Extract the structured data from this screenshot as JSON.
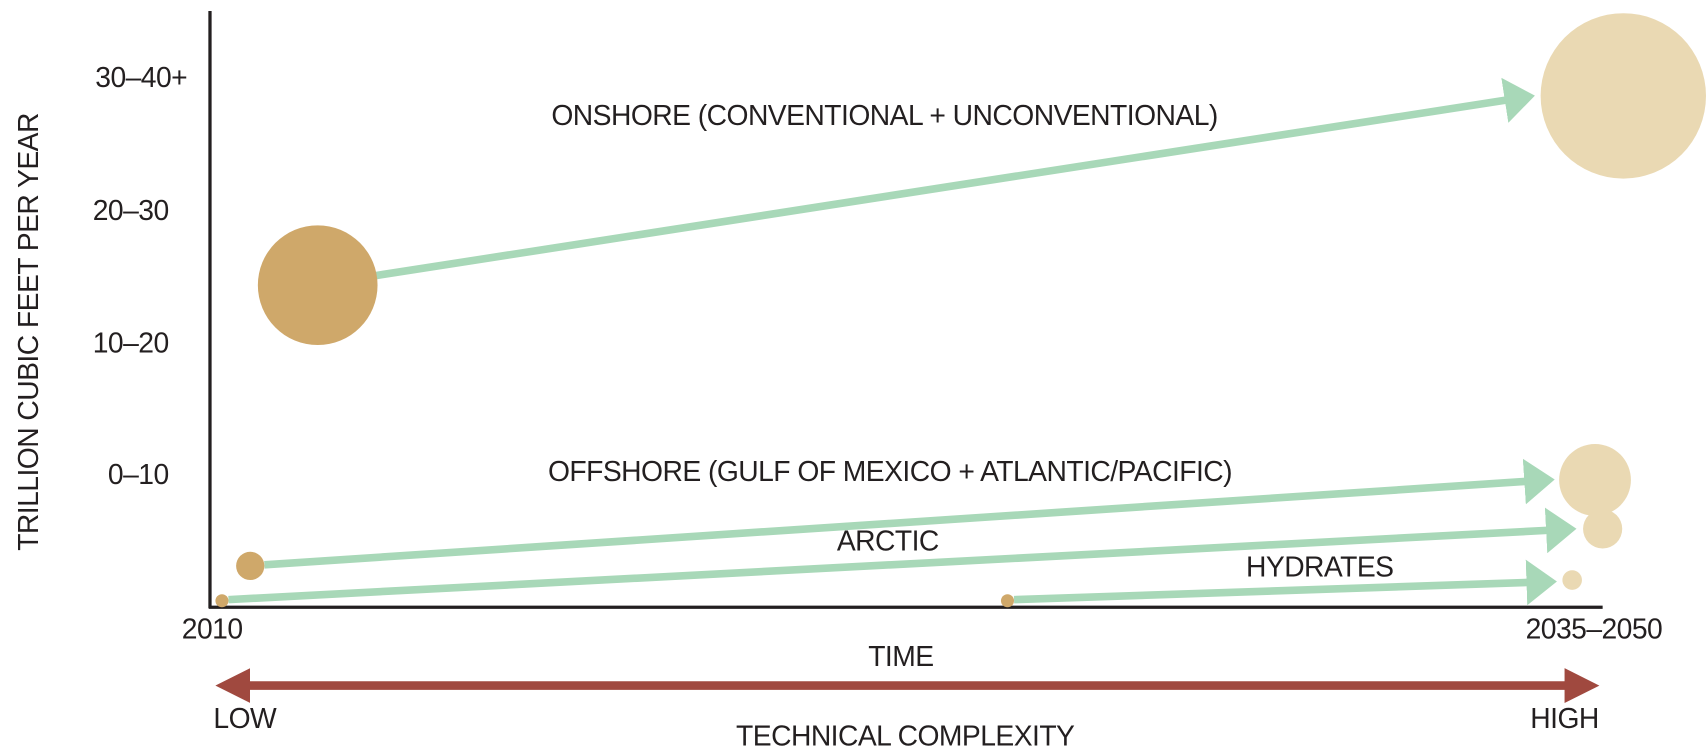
{
  "y_axis": {
    "title": "TRILLION CUBIC FEET PER YEAR",
    "labels": [
      "30–40+",
      "20–30",
      "10–20",
      "0–10"
    ]
  },
  "x_axis": {
    "title": "TIME",
    "start": "2010",
    "end": "2035–2050"
  },
  "complexity": {
    "title": "TECHNICAL COMPLEXITY",
    "low": "LOW",
    "high": "HIGH"
  },
  "flows": [
    {
      "label": "ONSHORE (CONVENTIONAL + UNCONVENTIONAL)"
    },
    {
      "label": "OFFSHORE (GULF OF MEXICO + ATLANTIC/PACIFIC)"
    },
    {
      "label": "ARCTIC"
    },
    {
      "label": "HYDRATES"
    }
  ]
}
